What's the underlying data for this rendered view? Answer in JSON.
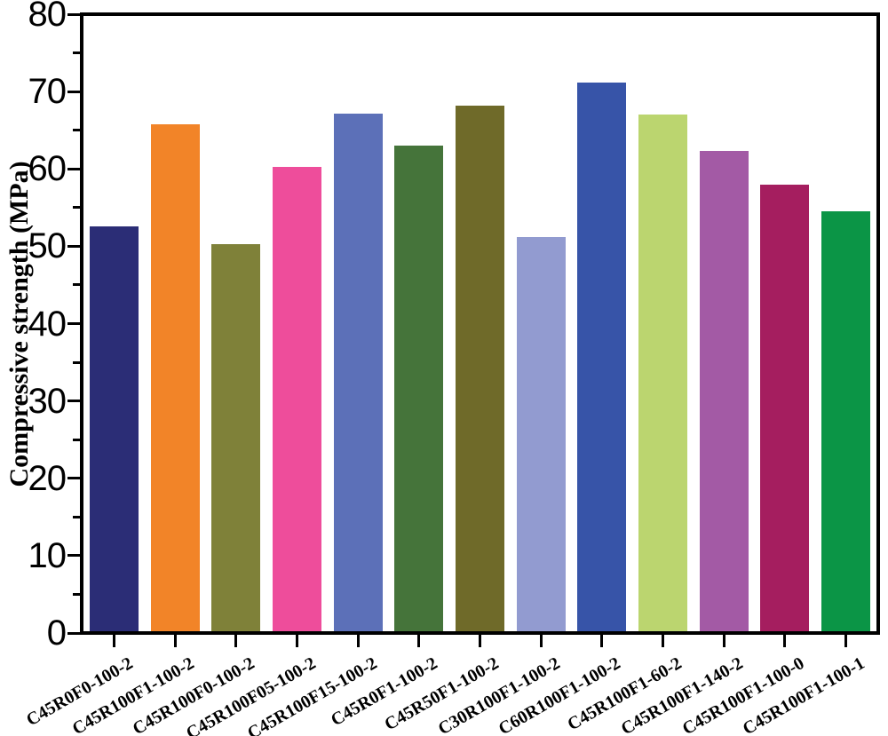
{
  "figure": {
    "kind": "bar-chart-figure",
    "background": "#ffffff"
  },
  "chart_data": {
    "type": "bar",
    "title": "",
    "xlabel": "",
    "ylabel": "Compressive strength (MPa)",
    "ylim": [
      0,
      80
    ],
    "ytick_step": 10,
    "yminor_step": 5,
    "yticks": [
      0,
      10,
      20,
      30,
      40,
      50,
      60,
      70,
      80
    ],
    "grid": false,
    "legend": "none",
    "axis_color": "#000000",
    "categories": [
      "C45R0F0-100-2",
      "C45R100F1-100-2",
      "C45R100F0-100-2",
      "C45R100F05-100-2",
      "C45R100F15-100-2",
      "C45R0F1-100-2",
      "C45R50F1-100-2",
      "C30R100F1-100-2",
      "C60R100F1-100-2",
      "C45R100F1-60-2",
      "C45R100F1-140-2",
      "C45R100F1-100-0",
      "C45R100F1-100-1"
    ],
    "values": [
      52.7,
      65.9,
      50.3,
      60.4,
      67.3,
      63.2,
      68.4,
      51.2,
      71.4,
      67.2,
      62.4,
      58.1,
      54.6
    ],
    "bar_colors": [
      "#2B2D76",
      "#F28428",
      "#7F8139",
      "#EE4D9B",
      "#5C70B8",
      "#45743A",
      "#6F6A29",
      "#929BD0",
      "#3754A8",
      "#BBD56F",
      "#A35AA5",
      "#A51E5F",
      "#0B9546"
    ]
  }
}
